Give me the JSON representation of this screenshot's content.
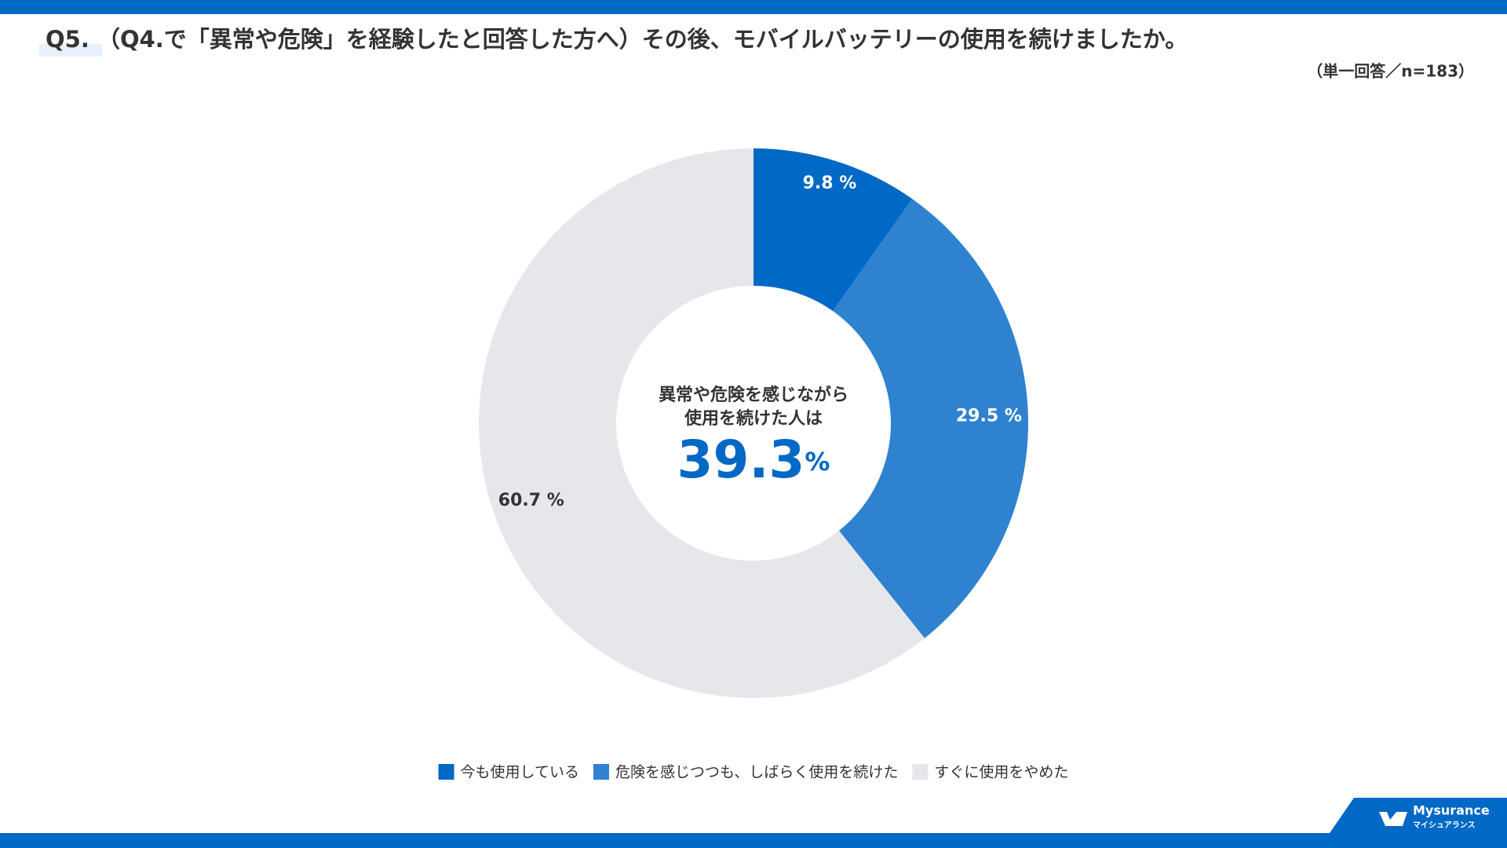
{
  "header": {
    "title": "Q5. （Q4.で「異常や危険」を経験したと回答した方へ）その後、モバイルバッテリーの使用を続けましたか。",
    "subtitle": "（単一回答／n=183）"
  },
  "chart_data": {
    "type": "donut",
    "categories": [
      "今も使用している",
      "危険を感じつつも、しばらく使用を続けた",
      "すぐに使用をやめた"
    ],
    "values": [
      9.8,
      29.5,
      60.7
    ],
    "value_labels": [
      "9.8 %",
      "29.5 %",
      "60.7 %"
    ],
    "colors": [
      "#0068c5",
      "#2e82d0",
      "#e6e7eb"
    ],
    "center_text": [
      "異常や危険を感じながら",
      "使用を続けた人は"
    ],
    "center_value": 39.3,
    "center_unit": "%"
  },
  "logo": {
    "name": "Mysurance",
    "kana": "マイシュアランス"
  }
}
